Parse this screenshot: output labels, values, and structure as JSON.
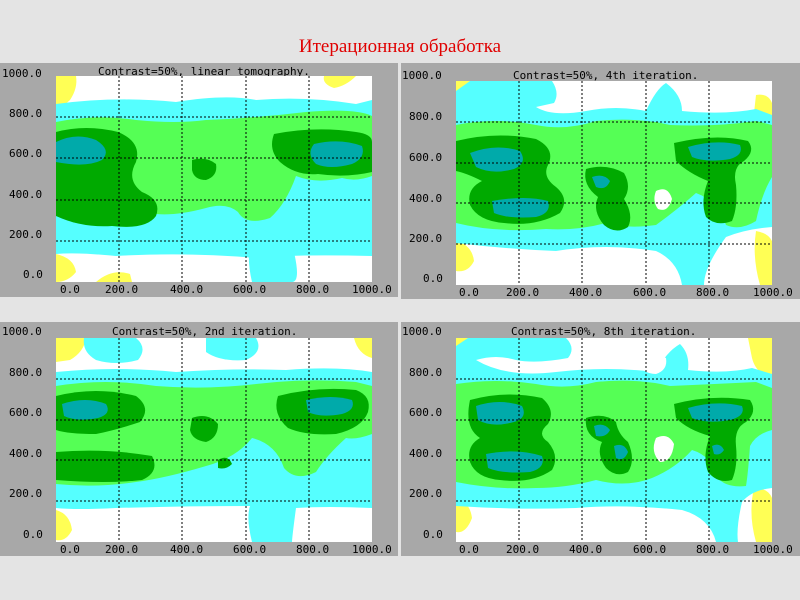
{
  "slide_title": "Итерационная обработка",
  "colors": {
    "background": "#e4e4e4",
    "panel": "#a8a8a8",
    "white": "#ffffff",
    "yellow": "#ffff55",
    "cyan": "#55ffff",
    "light_green": "#55ff55",
    "dark_green": "#00aa00",
    "teal": "#00aaaa",
    "title": "#e00000"
  },
  "y_ticks": [
    "1000.0",
    "800.0",
    "600.0",
    "400.0",
    "200.0",
    "0.0"
  ],
  "x_ticks": [
    "0.0",
    "200.0",
    "400.0",
    "600.0",
    "800.0",
    "1000.0"
  ],
  "panels": [
    {
      "title": "Contrast=50%, linear tomography."
    },
    {
      "title": "Contrast=50%, 4th iteration."
    },
    {
      "title": "Contrast=50%, 2nd iteration."
    },
    {
      "title": "Contrast=50%, 8th iteration."
    }
  ]
}
